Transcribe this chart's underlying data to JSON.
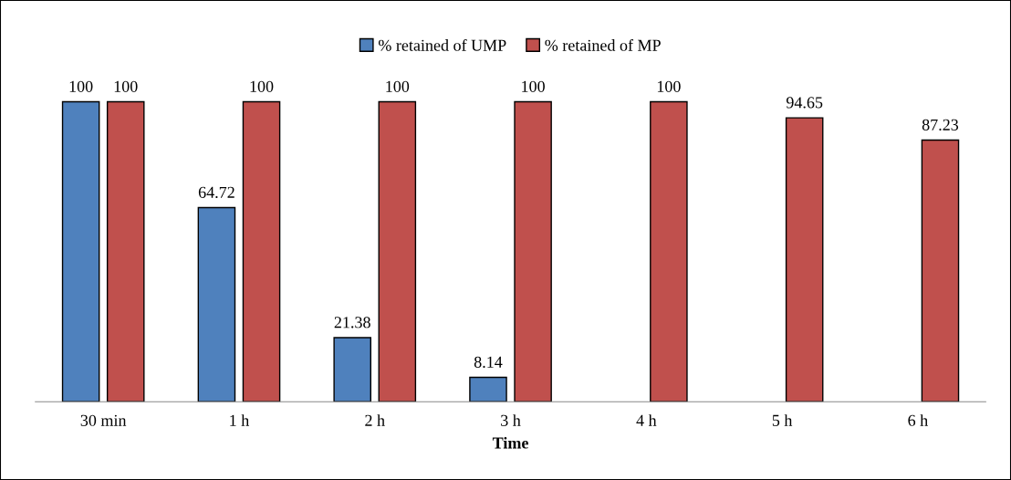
{
  "chart_data": {
    "type": "bar",
    "xlabel": "Time",
    "categories": [
      "30 min",
      "1 h",
      "2 h",
      "3 h",
      "4 h",
      "5 h",
      "6 h"
    ],
    "series": [
      {
        "name": "% retained of UMP",
        "color": "#4f81bd",
        "values": [
          100,
          64.72,
          21.38,
          8.14,
          null,
          null,
          null
        ]
      },
      {
        "name": "% retained of MP",
        "color": "#c0504d",
        "values": [
          100,
          100,
          100,
          100,
          100,
          94.65,
          87.23
        ]
      }
    ],
    "data_labels": true,
    "legend": "top",
    "grid": false,
    "tick_labels": "x"
  }
}
